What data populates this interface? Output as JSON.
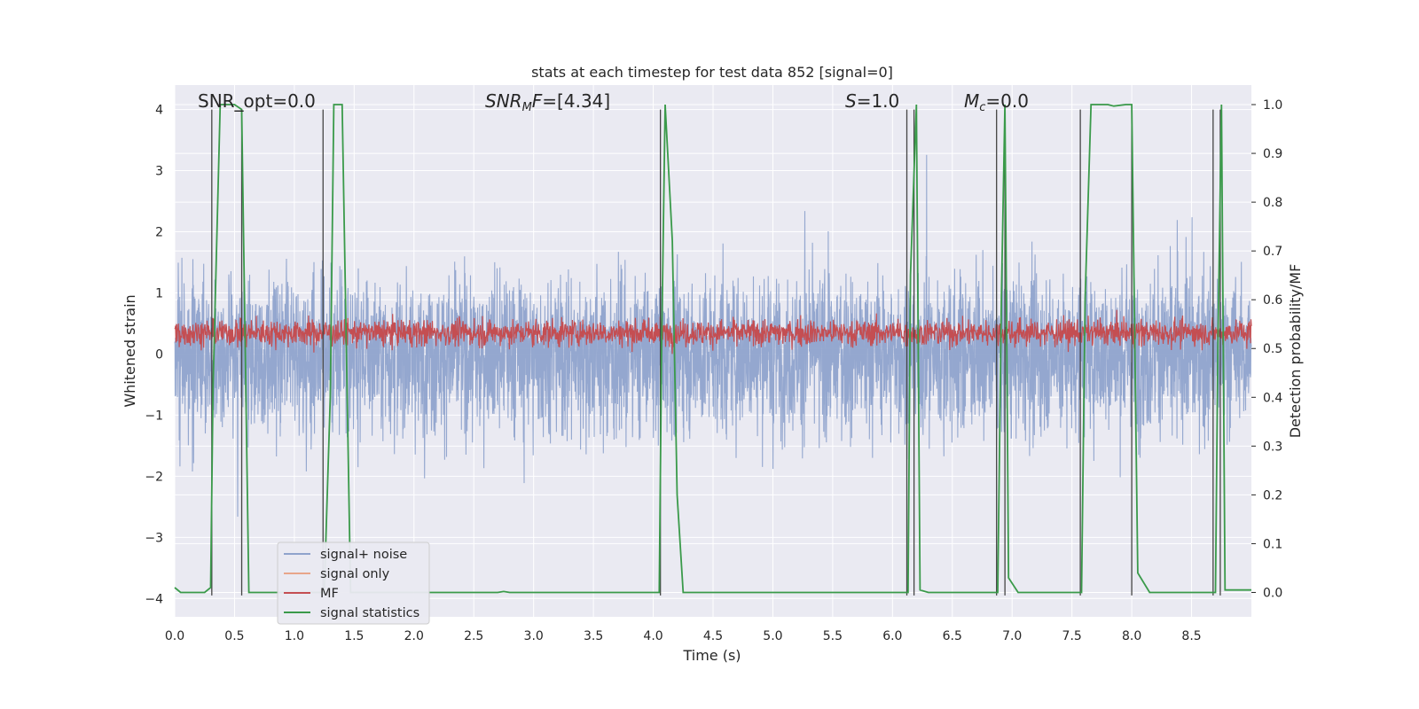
{
  "chart_data": {
    "type": "line",
    "title": "stats at each timestep for test data 852 [signal=0]",
    "xlabel": "Time (s)",
    "ylabel": "Whitened strain",
    "ylabel_right": "Detection probability/MF",
    "xlim": [
      0.0,
      9.0
    ],
    "ylim": [
      -4.3,
      4.4
    ],
    "ylim_right": [
      -0.05,
      1.04
    ],
    "xticks": [
      "0.0",
      "0.5",
      "1.0",
      "1.5",
      "2.0",
      "2.5",
      "3.0",
      "3.5",
      "4.0",
      "4.5",
      "5.0",
      "5.5",
      "6.0",
      "6.5",
      "7.0",
      "7.5",
      "8.0",
      "8.5"
    ],
    "yticks": [
      "4",
      "3",
      "2",
      "1",
      "0",
      "−1",
      "−2",
      "−3",
      "−4"
    ],
    "yticks_right": [
      "1.0",
      "0.9",
      "0.8",
      "0.7",
      "0.6",
      "0.5",
      "0.4",
      "0.3",
      "0.2",
      "0.1",
      "0.0"
    ],
    "annotations": {
      "snr_opt": "SNR_opt=0.0",
      "snr_mf_base": "SNR",
      "snr_mf_sub": "M",
      "snr_mf_tail": "F",
      "snr_mf_value": "=[4.34]",
      "s_base": "S",
      "s_value": "=1.0",
      "mc_base": "M",
      "mc_sub": "c",
      "mc_value": "=0.0"
    },
    "legend": {
      "position": "lower-left",
      "entries": [
        "signal+ noise",
        "signal only",
        "MF",
        "signal statistics"
      ]
    },
    "colors": {
      "noise": "#8fa3cc",
      "signal_only": "#e8a58a",
      "mf": "#c44e52",
      "stats": "#3a9a4a",
      "vlines": "#444444",
      "bg": "#eaeaf2",
      "grid": "#ffffff"
    },
    "series": [
      {
        "name": "signal statistics",
        "axis": "right",
        "x": [
          0.0,
          0.05,
          0.25,
          0.3,
          0.32,
          0.38,
          0.5,
          0.56,
          0.62,
          1.0,
          1.25,
          1.3,
          1.33,
          1.4,
          1.47,
          2.0,
          2.7,
          2.75,
          2.8,
          3.5,
          4.05,
          4.07,
          4.1,
          4.16,
          4.2,
          4.25,
          5.0,
          5.5,
          6.13,
          6.15,
          6.2,
          6.23,
          6.3,
          6.5,
          6.88,
          6.91,
          6.94,
          6.97,
          7.05,
          7.58,
          7.61,
          7.66,
          7.8,
          7.85,
          7.95,
          8.0,
          8.05,
          8.15,
          8.7,
          8.72,
          8.75,
          8.78,
          9.0
        ],
        "y": [
          0.01,
          0.0,
          0.0,
          0.01,
          0.42,
          1.0,
          1.0,
          0.99,
          0.0,
          0.0,
          0.0,
          0.4,
          1.0,
          1.0,
          0.0,
          0.0,
          0.0,
          0.002,
          0.0,
          0.0,
          0.0,
          0.5,
          1.0,
          0.72,
          0.2,
          0.0,
          0.0,
          0.0,
          0.0,
          0.65,
          1.0,
          0.005,
          0.0,
          0.0,
          0.0,
          0.6,
          1.0,
          0.03,
          0.0,
          0.0,
          0.6,
          1.0,
          1.0,
          0.997,
          1.0,
          1.0,
          0.04,
          0.0,
          0.0,
          0.5,
          1.0,
          0.005,
          0.005
        ]
      },
      {
        "name": "MF",
        "axis": "left",
        "description": "matched-filter output, noisy band roughly 0.0 to 0.8 (peaks ~1.0)",
        "center": 0.35,
        "amplitude": 0.28
      },
      {
        "name": "signal+ noise",
        "axis": "left",
        "description": "whitened strain noise, dense band roughly -1.5 to 1.6 with spikes to about ±3.5",
        "center": 0.0,
        "amplitude": 0.9
      }
    ],
    "vlines": [
      0.31,
      0.56,
      1.24,
      4.06,
      6.12,
      6.18,
      6.87,
      6.94,
      7.57,
      8.0,
      8.68,
      8.74
    ]
  }
}
